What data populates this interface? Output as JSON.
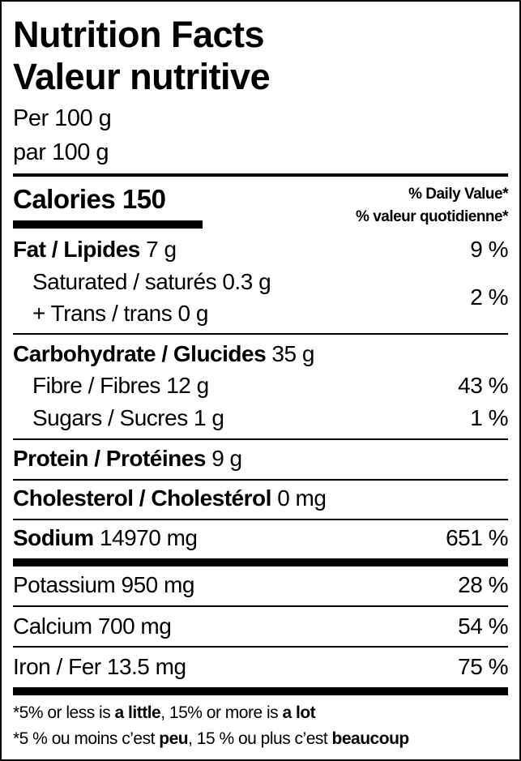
{
  "title_en": "Nutrition Facts",
  "title_fr": "Valeur nutritive",
  "serving_en": "Per 100 g",
  "serving_fr": "par 100 g",
  "calories_label": "Calories",
  "calories_value": "150",
  "dv_en": "% Daily Value*",
  "dv_fr": "% valeur quotidienne*",
  "fat": {
    "label": "Fat / Lipides",
    "amount": "7 g",
    "dv": "9 %"
  },
  "saturated": {
    "label": "Saturated / saturés",
    "amount": "0.3 g"
  },
  "trans": {
    "label": "+ Trans / trans",
    "amount": "0 g"
  },
  "sat_trans_dv": "2 %",
  "carb": {
    "label": "Carbohydrate / Glucides",
    "amount": "35 g"
  },
  "fibre": {
    "label": "Fibre / Fibres",
    "amount": "12 g",
    "dv": "43 %"
  },
  "sugars": {
    "label": "Sugars / Sucres",
    "amount": "1 g",
    "dv": "1 %"
  },
  "protein": {
    "label": "Protein / Protéines",
    "amount": "9 g"
  },
  "cholesterol": {
    "label": "Cholesterol / Cholestérol",
    "amount": "0 mg"
  },
  "sodium": {
    "label": "Sodium",
    "amount": "14970 mg",
    "dv": "651 %"
  },
  "potassium": {
    "label": "Potassium",
    "amount": "950 mg",
    "dv": "28 %"
  },
  "calcium": {
    "label": "Calcium",
    "amount": "700 mg",
    "dv": "54 %"
  },
  "iron": {
    "label": "Iron / Fer",
    "amount": "13.5 mg",
    "dv": "75 %"
  },
  "footnote_en": {
    "a": "*5% or less is ",
    "b": "a little",
    "c": ", 15% or more is ",
    "d": "a lot"
  },
  "footnote_fr": {
    "a": "*5 % ou moins c’est ",
    "b": "peu",
    "c": ", 15 % ou plus c’est ",
    "d": "beaucoup"
  }
}
